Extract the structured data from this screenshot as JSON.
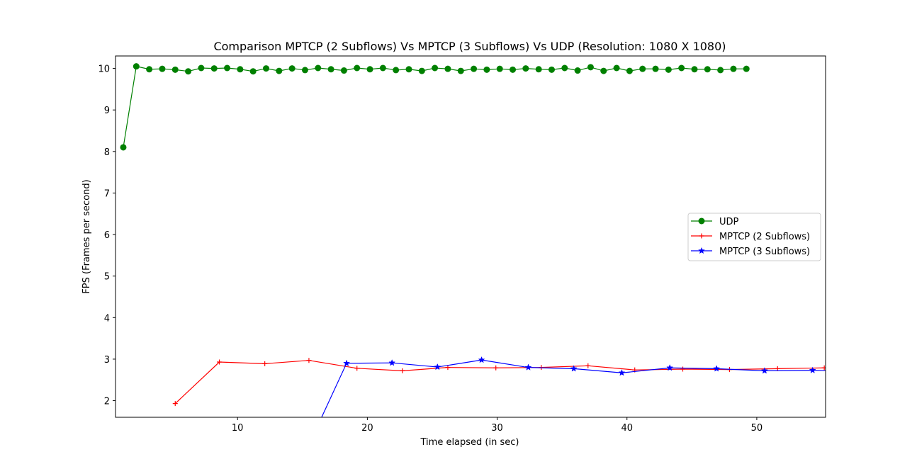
{
  "chart_data": {
    "type": "line",
    "title": "Comparison MPTCP (2 Subflows) Vs MPTCP (3 Subflows) Vs UDP (Resolution: 1080 X 1080)",
    "xlabel": "Time elapsed (in sec)",
    "ylabel": "FPS (Frames per second)",
    "xlim": [
      0.6,
      55.3
    ],
    "ylim": [
      1.6,
      10.3
    ],
    "xticks": [
      10,
      20,
      30,
      40,
      50
    ],
    "yticks": [
      2,
      3,
      4,
      5,
      6,
      7,
      8,
      9,
      10
    ],
    "grid": false,
    "legend": "center-right",
    "series": [
      {
        "name": "UDP",
        "color": "#008000",
        "marker": "circle",
        "x": [
          1.2,
          2.2,
          3.2,
          4.2,
          5.2,
          6.2,
          7.2,
          8.2,
          9.2,
          10.2,
          11.2,
          12.2,
          13.2,
          14.2,
          15.2,
          16.2,
          17.2,
          18.2,
          19.2,
          20.2,
          21.2,
          22.2,
          23.2,
          24.2,
          25.2,
          26.2,
          27.2,
          28.2,
          29.2,
          30.2,
          31.2,
          32.2,
          33.2,
          34.2,
          35.2,
          36.2,
          37.2,
          38.2,
          39.2,
          40.2,
          41.2,
          42.2,
          43.2,
          44.2,
          45.2,
          46.2,
          47.2,
          48.2,
          49.2
        ],
        "values": [
          8.1,
          10.05,
          9.98,
          9.99,
          9.97,
          9.93,
          10.01,
          10.0,
          10.01,
          9.98,
          9.93,
          10.0,
          9.94,
          10.0,
          9.96,
          10.01,
          9.98,
          9.95,
          10.01,
          9.98,
          10.01,
          9.96,
          9.98,
          9.94,
          10.01,
          9.99,
          9.94,
          9.99,
          9.97,
          9.99,
          9.97,
          10.0,
          9.98,
          9.97,
          10.01,
          9.95,
          10.03,
          9.94,
          10.01,
          9.94,
          9.99,
          9.99,
          9.97,
          10.01,
          9.98,
          9.98,
          9.96,
          9.99,
          9.99
        ]
      },
      {
        "name": "MPTCP (2 Subflows)",
        "color": "#ff0000",
        "marker": "plus",
        "x": [
          5.2,
          8.6,
          12.1,
          15.5,
          19.2,
          22.7,
          26.2,
          29.9,
          33.4,
          37.0,
          40.6,
          44.3,
          47.9,
          51.6,
          55.2
        ],
        "values": [
          1.93,
          2.93,
          2.89,
          2.97,
          2.78,
          2.72,
          2.8,
          2.79,
          2.8,
          2.84,
          2.74,
          2.76,
          2.75,
          2.77,
          2.79
        ]
      },
      {
        "name": "MPTCP (3 Subflows)",
        "color": "#0000ff",
        "marker": "star",
        "x": [
          15.0,
          18.4,
          21.9,
          25.4,
          28.8,
          32.4,
          35.9,
          39.6,
          43.3,
          46.9,
          50.6,
          54.3,
          58.0
        ],
        "values": [
          0.6,
          2.9,
          2.91,
          2.81,
          2.98,
          2.8,
          2.77,
          2.67,
          2.79,
          2.77,
          2.72,
          2.73,
          2.72
        ]
      }
    ]
  }
}
